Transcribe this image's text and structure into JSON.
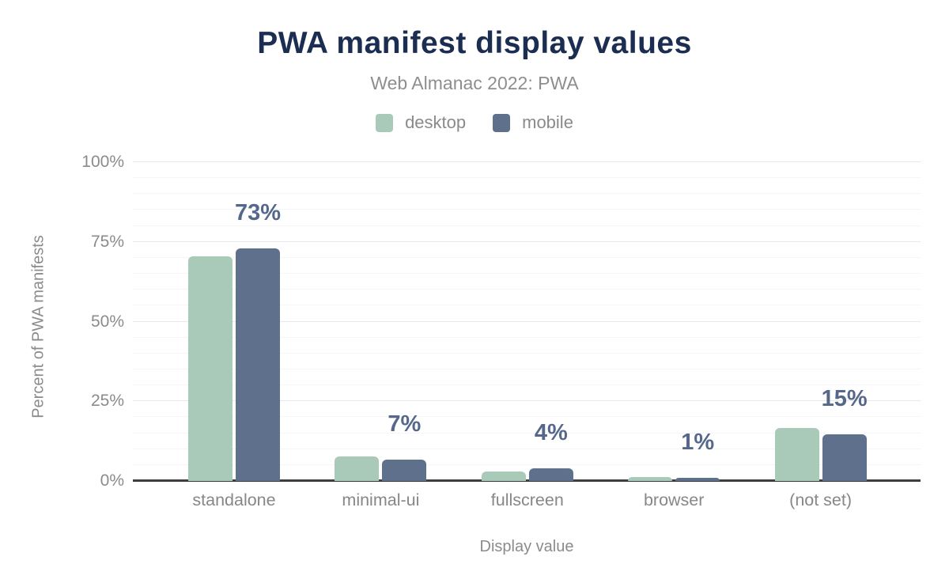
{
  "header": {
    "title": "PWA manifest display values",
    "subtitle": "Web Almanac 2022: PWA"
  },
  "legend": [
    {
      "label": "desktop",
      "color": "#a9cab8"
    },
    {
      "label": "mobile",
      "color": "#5e708c"
    }
  ],
  "chart_data": {
    "type": "bar",
    "title": "PWA manifest display values",
    "subtitle": "Web Almanac 2022: PWA",
    "categories": [
      "standalone",
      "minimal-ui",
      "fullscreen",
      "browser",
      "(not set)"
    ],
    "series": [
      {
        "name": "desktop",
        "color": "#a9cab8",
        "values": [
          70.4,
          7.6,
          2.9,
          1.2,
          16.6
        ]
      },
      {
        "name": "mobile",
        "color": "#5e708c",
        "values": [
          73.0,
          6.6,
          4.0,
          1.0,
          14.7
        ]
      }
    ],
    "data_labels": {
      "series": "mobile",
      "values": [
        "73%",
        "7%",
        "4%",
        "1%",
        "15%"
      ]
    },
    "xlabel": "Display value",
    "ylabel": "Percent of PWA manifests",
    "ylim": [
      0,
      100
    ],
    "yticks": [
      "0%",
      "25%",
      "50%",
      "75%",
      "100%"
    ],
    "grid": {
      "major_step": 25,
      "minor_step": 5,
      "legend_position": "top"
    }
  },
  "colors": {
    "title": "#1b2d51",
    "subtitle": "#8e8e8e",
    "axis_text": "#8b8b8b",
    "axis_line": "#3e3e3e",
    "data_label": "#55688b",
    "gridline_major": "#e8e8ea",
    "gridline_minor": "#f5f5f6",
    "background": "#ffffff"
  }
}
